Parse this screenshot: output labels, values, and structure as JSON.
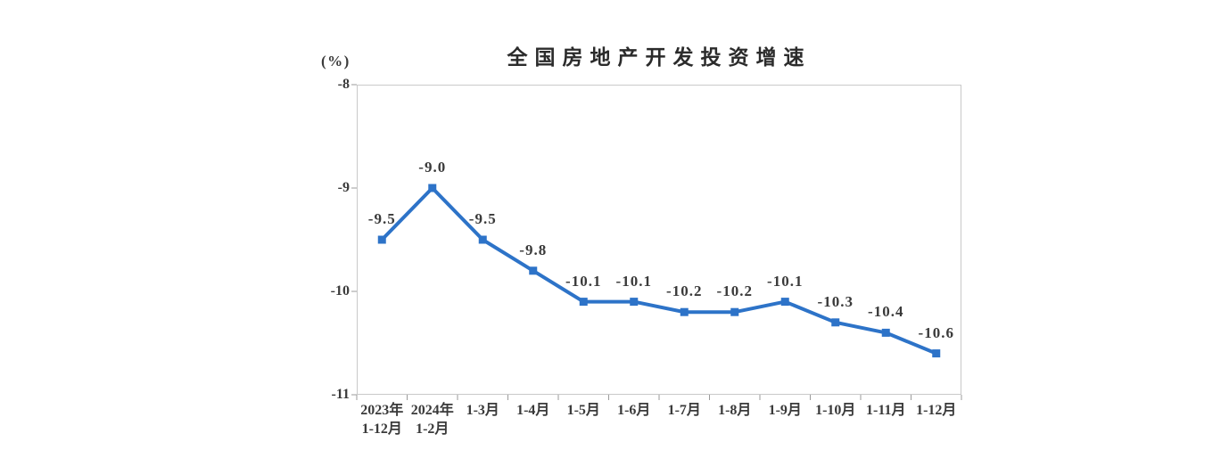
{
  "chart_data": {
    "type": "line",
    "title": "全国房地产开发投资增速",
    "y_unit": "(%)",
    "xlabel": "",
    "ylabel": "(%)",
    "categories": [
      "2023年1-12月",
      "2024年1-2月",
      "1-3月",
      "1-4月",
      "1-5月",
      "1-6月",
      "1-7月",
      "1-8月",
      "1-9月",
      "1-10月",
      "1-11月",
      "1-12月"
    ],
    "category_display_lines": [
      [
        "2023年",
        "1-12月"
      ],
      [
        "2024年",
        "1-2月"
      ],
      [
        "1-3月"
      ],
      [
        "1-4月"
      ],
      [
        "1-5月"
      ],
      [
        "1-6月"
      ],
      [
        "1-7月"
      ],
      [
        "1-8月"
      ],
      [
        "1-9月"
      ],
      [
        "1-10月"
      ],
      [
        "1-11月"
      ],
      [
        "1-12月"
      ]
    ],
    "values": [
      -9.5,
      -9.0,
      -9.5,
      -9.8,
      -10.1,
      -10.1,
      -10.2,
      -10.2,
      -10.1,
      -10.3,
      -10.4,
      -10.6
    ],
    "point_labels": [
      "-9.5",
      "-9.0",
      "-9.5",
      "-9.8",
      "-10.1",
      "-10.1",
      "-10.2",
      "-10.2",
      "-10.1",
      "-10.3",
      "-10.4",
      "-10.6"
    ],
    "yticks": [
      -8,
      -9,
      -10,
      -11
    ],
    "ytick_labels": [
      "-8",
      "-9",
      "-10",
      "-11"
    ],
    "ylim": [
      -11,
      -8
    ],
    "grid": false,
    "legend": "none",
    "marker": "square",
    "line_color": "#2D73C8",
    "frame_color": "#c9c9c9",
    "tick_color": "#9b9b9b",
    "text_color": "#3a3a3a"
  }
}
